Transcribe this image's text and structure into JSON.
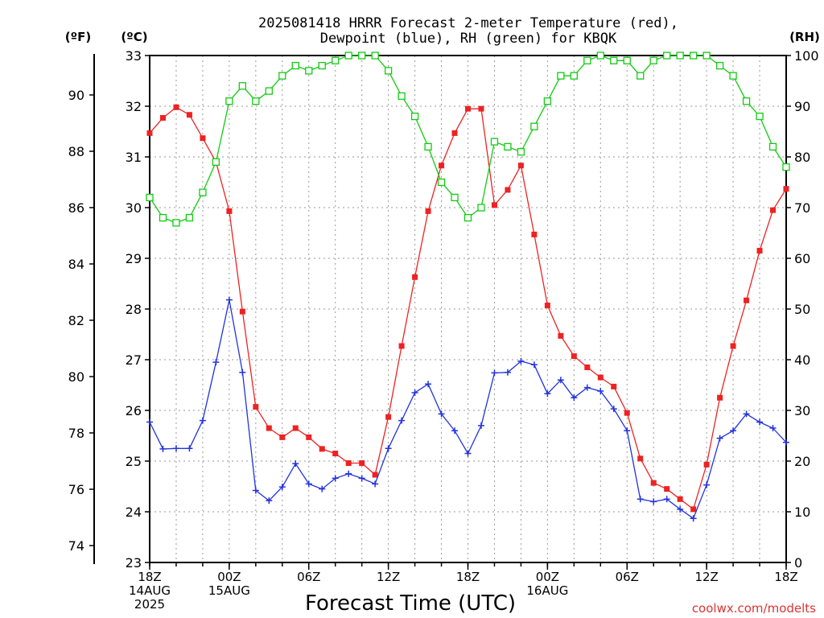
{
  "chart_data": {
    "type": "line",
    "title_line1": "2025081418 HRRR Forecast 2-meter Temperature (red),",
    "title_line2": "Dewpoint (blue), RH (green) for KBQK",
    "xlabel": "Forecast Time (UTC)",
    "unit_f": "(ºF)",
    "unit_c": "(ºC)",
    "unit_rh": "(RH)",
    "credit": "coolwx.com/modelts",
    "xlim": [
      0,
      48
    ],
    "ylim_c": [
      23,
      33
    ],
    "ylim_rh": [
      0,
      100
    ],
    "x_ticks": [
      {
        "x": 0,
        "lines": [
          "18Z",
          "14AUG",
          "2025"
        ]
      },
      {
        "x": 6,
        "lines": [
          "00Z",
          "15AUG"
        ]
      },
      {
        "x": 12,
        "lines": [
          "06Z"
        ]
      },
      {
        "x": 18,
        "lines": [
          "12Z"
        ]
      },
      {
        "x": 24,
        "lines": [
          "18Z"
        ]
      },
      {
        "x": 30,
        "lines": [
          "00Z",
          "16AUG"
        ]
      },
      {
        "x": 36,
        "lines": [
          "06Z"
        ]
      },
      {
        "x": 42,
        "lines": [
          "12Z"
        ]
      },
      {
        "x": 48,
        "lines": [
          "18Z"
        ]
      }
    ],
    "c_ticks": [
      "23",
      "24",
      "25",
      "26",
      "27",
      "28",
      "29",
      "30",
      "31",
      "32",
      "33"
    ],
    "f_ticks": [
      "74",
      "76",
      "78",
      "80",
      "82",
      "84",
      "86",
      "88",
      "90"
    ],
    "rh_ticks": [
      "0",
      "10",
      "20",
      "30",
      "40",
      "50",
      "60",
      "70",
      "80",
      "90",
      "100"
    ],
    "colors": {
      "temperature": "#ee2222",
      "dewpoint": "#2233dd",
      "rh": "#11cc11",
      "credit": "#dd3333"
    },
    "series": [
      {
        "key": "temperature",
        "units": "C",
        "marker": "filled-square",
        "values": [
          31.47,
          31.77,
          31.98,
          31.83,
          31.37,
          30.9,
          29.93,
          27.95,
          26.07,
          25.65,
          25.47,
          25.65,
          25.47,
          25.24,
          25.15,
          24.96,
          24.96,
          24.73,
          25.87,
          27.27,
          28.63,
          29.93,
          30.83,
          31.47,
          31.95,
          31.95,
          30.05,
          30.35,
          30.83,
          29.47,
          28.07,
          27.47,
          27.07,
          26.85,
          26.65,
          26.47,
          25.95,
          25.05,
          24.57,
          24.45,
          24.25,
          24.05,
          24.93,
          26.25,
          27.27,
          28.17,
          29.15,
          29.95,
          30.37
        ]
      },
      {
        "key": "dewpoint",
        "units": "C",
        "marker": "plus",
        "values": [
          25.77,
          25.24,
          25.25,
          25.25,
          25.8,
          26.95,
          28.18,
          26.75,
          24.42,
          24.22,
          24.49,
          24.95,
          24.55,
          24.45,
          24.66,
          24.75,
          24.66,
          24.55,
          25.25,
          25.8,
          26.35,
          26.52,
          25.93,
          25.6,
          25.15,
          25.7,
          26.74,
          26.75,
          26.97,
          26.9,
          26.33,
          26.6,
          26.25,
          26.45,
          26.38,
          26.03,
          25.6,
          24.25,
          24.2,
          24.25,
          24.05,
          23.87,
          24.53,
          25.45,
          25.6,
          25.93,
          25.77,
          25.65,
          25.37
        ]
      },
      {
        "key": "rh",
        "units": "%",
        "marker": "open-square",
        "values": [
          72,
          68,
          67,
          68,
          73,
          79,
          91,
          94,
          91,
          93,
          96,
          98,
          97,
          98,
          99,
          100,
          100,
          100,
          97,
          92,
          88,
          82,
          75,
          72,
          68,
          70,
          83,
          82,
          81,
          86,
          91,
          96,
          96,
          99,
          100,
          99,
          99,
          96,
          99,
          100,
          100,
          100,
          100,
          98,
          96,
          91,
          88,
          82,
          78
        ]
      }
    ]
  }
}
